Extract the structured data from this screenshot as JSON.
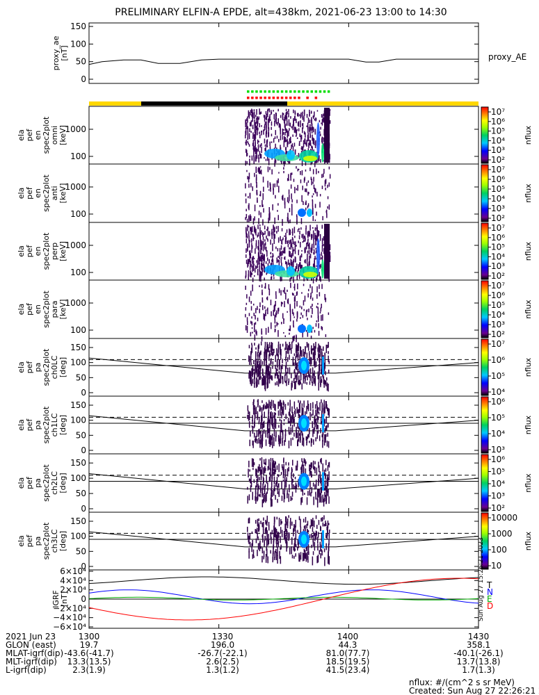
{
  "title": "PRELIMINARY ELFIN-A EPDE, alt=438km, 2021-06-23 13:00 to 14:30",
  "chart_data": {
    "type": "multi-panel spectrogram",
    "time_range": [
      "2021-06-23 13:00",
      "2021-06-23 14:30"
    ],
    "x_ticks": [
      "1300",
      "1330",
      "1400",
      "1430"
    ],
    "panels": [
      {
        "id": "proxy_ae",
        "ylabel": [
          "proxy_ae",
          "[nT]"
        ],
        "ylim": [
          0,
          160
        ],
        "yticks": [
          "150",
          "100",
          "50",
          "0"
        ],
        "series": [
          {
            "name": "proxy_AE",
            "x": [
              0,
              3,
              8,
              12,
              16,
              21,
              26,
              30,
              35,
              40,
              45,
              50,
              55,
              60,
              64,
              67,
              71,
              75,
              80,
              85,
              90
            ],
            "y": [
              42,
              50,
              55,
              55,
              45,
              45,
              55,
              57,
              57,
              57,
              57,
              57,
              57,
              57,
              49,
              49,
              57,
              57,
              57,
              57,
              57
            ]
          }
        ]
      },
      {
        "id": "en_omni",
        "ylabel": [
          "ela",
          "pef",
          "en",
          "spec2plot",
          "omni",
          "[keV]"
        ],
        "yticks": [
          "1000",
          "100"
        ],
        "colorbar": {
          "label": "nflux",
          "ticks": [
            "10⁷",
            "10⁶",
            "10⁵",
            "10⁴",
            "10³",
            "10²"
          ]
        }
      },
      {
        "id": "en_anti",
        "ylabel": [
          "ela",
          "pef",
          "en",
          "spec2plot",
          "anti",
          "[keV]"
        ],
        "yticks": [
          "1000",
          "100"
        ],
        "colorbar": {
          "label": "nflux",
          "ticks": [
            "10⁷",
            "10⁶",
            "10⁵",
            "10⁴",
            "10³",
            "10²"
          ]
        }
      },
      {
        "id": "en_perp",
        "ylabel": [
          "ela",
          "pef",
          "en",
          "spec2plot",
          "perp",
          "[keV]"
        ],
        "yticks": [
          "1000",
          "100"
        ],
        "colorbar": {
          "label": "nflux",
          "ticks": [
            "10⁷",
            "10⁶",
            "10⁵",
            "10⁴",
            "10³",
            "10²"
          ]
        }
      },
      {
        "id": "en_para",
        "ylabel": [
          "ela",
          "pef",
          "en",
          "spec2plot",
          "para",
          "[keV]"
        ],
        "yticks": [
          "1000",
          "100"
        ],
        "colorbar": {
          "label": "nflux",
          "ticks": [
            "10⁷",
            "10⁶",
            "10⁵",
            "10⁴",
            "10³",
            "10²"
          ]
        }
      },
      {
        "id": "pa_ch0",
        "ylabel": [
          "ela",
          "pef",
          "pa",
          "spec2plot",
          "ch0LC",
          "[deg]"
        ],
        "yticks": [
          "150",
          "100",
          "50",
          "0"
        ],
        "colorbar": {
          "label": "nflux",
          "ticks": [
            "10⁷",
            "10⁶",
            "10⁵",
            "10⁴"
          ]
        }
      },
      {
        "id": "pa_ch1",
        "ylabel": [
          "ela",
          "pef",
          "pa",
          "spec2plot",
          "ch1LC",
          "[deg]"
        ],
        "yticks": [
          "150",
          "100",
          "50",
          "0"
        ],
        "colorbar": {
          "label": "nflux",
          "ticks": [
            "10⁶",
            "10⁵",
            "10⁴",
            "10³"
          ]
        }
      },
      {
        "id": "pa_ch2",
        "ylabel": [
          "ela",
          "pef",
          "pa",
          "spec2plot",
          "ch2LC",
          "[deg]"
        ],
        "yticks": [
          "150",
          "100",
          "50",
          "0"
        ],
        "colorbar": {
          "label": "nflux",
          "ticks": [
            "10⁶",
            "10⁵",
            "10⁴",
            "10³",
            "10²"
          ]
        }
      },
      {
        "id": "pa_ch3",
        "ylabel": [
          "ela",
          "pef",
          "pa",
          "spec2plot",
          "ch3LC",
          "[deg]"
        ],
        "yticks": [
          "150",
          "100",
          "50",
          "0"
        ],
        "colorbar": {
          "label": "nflux",
          "ticks": [
            "10000",
            "1000",
            "100",
            "10"
          ]
        }
      },
      {
        "id": "igrf",
        "ylabel": [
          "IGRF",
          "[nT]"
        ],
        "ylim": [
          -60000,
          60000
        ],
        "yticks": [
          "6×10⁴",
          "4×10⁴",
          "2×10⁴",
          "0",
          "−2×10⁴",
          "−4×10⁴",
          "−6×10⁴"
        ],
        "legend": [
          "T",
          "N",
          "E",
          "D"
        ],
        "legend_colors": [
          "#000000",
          "#0000ff",
          "#00aa00",
          "#ff0000"
        ],
        "created_tiny": "Sun Aug 27 15:26:21 2023"
      }
    ],
    "footer_rows": [
      {
        "label": "2021 Jun 23",
        "values": [
          "1300",
          "1330",
          "1400",
          "1430"
        ]
      },
      {
        "label": "GLON (east)",
        "values": [
          "19.7",
          "196.0",
          "44.3",
          "358.1"
        ]
      },
      {
        "label": "MLAT-igrf(dip)",
        "values": [
          "-43.6(-41.7)",
          "-26.7(-22.1)",
          "81.0(77.7)",
          "-40.1(-26.1)"
        ]
      },
      {
        "label": "MLT-igrf(dip)",
        "values": [
          "13.3(13.5)",
          "2.6(2.5)",
          "18.5(19.5)",
          "13.7(13.8)"
        ]
      },
      {
        "label": "L-igrf(dip)",
        "values": [
          "2.3(1.9)",
          "1.3(1.2)",
          "41.5(23.4)",
          "1.7(1.3)"
        ]
      }
    ],
    "nflux_units": "nflux: #/(cm^2 s sr MeV)",
    "created": "Created: Sun Aug 27 22:26:21 2023",
    "colors": {
      "sunlit_bar": "#ffd700",
      "shadow_bar": "#000000",
      "green_marks": "#00dd00",
      "red_marks": "#ff0000"
    }
  }
}
